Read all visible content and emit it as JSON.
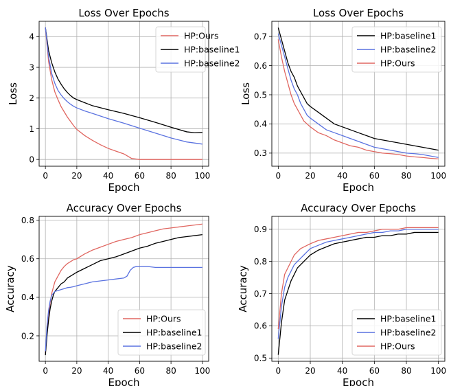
{
  "colors": {
    "ours": "#e06660",
    "baseline1": "#000000",
    "baseline2": "#5a72e0"
  },
  "chart_data": [
    {
      "type": "line",
      "title": "Loss Over Epochs",
      "xlabel": "Epoch",
      "ylabel": "Loss",
      "xlim": [
        -4,
        104
      ],
      "ylim": [
        -0.22,
        4.5
      ],
      "xticks": [
        "0",
        "20",
        "40",
        "60",
        "80",
        "100"
      ],
      "yticks": [
        "0",
        "1",
        "2",
        "3",
        "4"
      ],
      "grid": true,
      "legend": "upper-right",
      "series": [
        {
          "name": "HP:Ours",
          "color": "#e06660",
          "x": [
            0,
            2,
            4,
            6,
            8,
            10,
            12,
            14,
            16,
            18,
            20,
            25,
            30,
            35,
            40,
            45,
            50,
            55,
            60,
            70,
            80,
            90,
            100
          ],
          "y": [
            4.3,
            3.2,
            2.6,
            2.2,
            1.95,
            1.72,
            1.55,
            1.38,
            1.24,
            1.1,
            0.98,
            0.78,
            0.62,
            0.48,
            0.36,
            0.27,
            0.18,
            0.03,
            0.0,
            0.0,
            0.0,
            0.0,
            0.0
          ]
        },
        {
          "name": "HP:baseline1",
          "color": "#000000",
          "x": [
            0,
            2,
            4,
            6,
            8,
            10,
            12,
            14,
            16,
            18,
            20,
            25,
            30,
            40,
            50,
            60,
            70,
            80,
            90,
            95,
            100
          ],
          "y": [
            4.3,
            3.55,
            3.15,
            2.85,
            2.62,
            2.45,
            2.3,
            2.18,
            2.08,
            2.0,
            1.95,
            1.85,
            1.75,
            1.62,
            1.5,
            1.36,
            1.21,
            1.05,
            0.9,
            0.87,
            0.88
          ]
        },
        {
          "name": "HP:baseline2",
          "color": "#5a72e0",
          "x": [
            0,
            2,
            4,
            6,
            8,
            10,
            12,
            14,
            16,
            18,
            20,
            25,
            30,
            40,
            50,
            60,
            70,
            80,
            90,
            100
          ],
          "y": [
            4.3,
            3.35,
            2.8,
            2.48,
            2.25,
            2.1,
            1.98,
            1.88,
            1.8,
            1.73,
            1.68,
            1.58,
            1.5,
            1.33,
            1.18,
            1.02,
            0.86,
            0.7,
            0.57,
            0.5
          ]
        }
      ]
    },
    {
      "type": "line",
      "title": "Loss Over Epochs",
      "xlabel": "Epoch",
      "ylabel": "Loss",
      "xlim": [
        -4,
        104
      ],
      "ylim": [
        0.255,
        0.752
      ],
      "xticks": [
        "0",
        "20",
        "40",
        "60",
        "80",
        "100"
      ],
      "yticks": [
        "0.3",
        "0.4",
        "0.5",
        "0.6",
        "0.7"
      ],
      "grid": true,
      "legend": "upper-right",
      "series": [
        {
          "name": "HP:baseline1",
          "color": "#000000",
          "x": [
            0,
            2,
            4,
            6,
            8,
            10,
            12,
            14,
            16,
            18,
            20,
            25,
            30,
            35,
            40,
            45,
            50,
            55,
            60,
            65,
            70,
            75,
            80,
            85,
            90,
            95,
            100
          ],
          "y": [
            0.73,
            0.69,
            0.65,
            0.61,
            0.58,
            0.56,
            0.53,
            0.51,
            0.49,
            0.47,
            0.46,
            0.44,
            0.42,
            0.4,
            0.39,
            0.38,
            0.37,
            0.36,
            0.35,
            0.345,
            0.34,
            0.335,
            0.33,
            0.325,
            0.32,
            0.315,
            0.31
          ]
        },
        {
          "name": "HP:baseline2",
          "color": "#5a72e0",
          "x": [
            0,
            2,
            4,
            6,
            8,
            10,
            12,
            14,
            16,
            18,
            20,
            25,
            30,
            35,
            40,
            45,
            50,
            55,
            60,
            65,
            70,
            75,
            80,
            85,
            90,
            95,
            100
          ],
          "y": [
            0.71,
            0.67,
            0.63,
            0.59,
            0.55,
            0.52,
            0.5,
            0.47,
            0.45,
            0.43,
            0.42,
            0.4,
            0.38,
            0.37,
            0.36,
            0.35,
            0.34,
            0.33,
            0.32,
            0.315,
            0.31,
            0.305,
            0.3,
            0.298,
            0.295,
            0.29,
            0.285
          ]
        },
        {
          "name": "HP:Ours",
          "color": "#e06660",
          "x": [
            0,
            2,
            4,
            6,
            8,
            10,
            12,
            14,
            16,
            18,
            20,
            25,
            30,
            35,
            40,
            45,
            50,
            55,
            60,
            65,
            70,
            75,
            80,
            85,
            90,
            95,
            100
          ],
          "y": [
            0.69,
            0.63,
            0.58,
            0.54,
            0.5,
            0.47,
            0.45,
            0.43,
            0.41,
            0.4,
            0.39,
            0.37,
            0.36,
            0.345,
            0.335,
            0.325,
            0.32,
            0.31,
            0.305,
            0.3,
            0.298,
            0.295,
            0.29,
            0.287,
            0.285,
            0.282,
            0.28
          ]
        }
      ]
    },
    {
      "type": "line",
      "title": "Accuracy Over Epochs",
      "xlabel": "Epoch",
      "ylabel": "Accuracy",
      "xlim": [
        -4,
        104
      ],
      "ylim": [
        0.068,
        0.82
      ],
      "xticks": [
        "0",
        "20",
        "40",
        "60",
        "80",
        "100"
      ],
      "yticks": [
        "0.2",
        "0.4",
        "0.6",
        "0.8"
      ],
      "grid": true,
      "legend": "lower-right",
      "series": [
        {
          "name": "HP:Ours",
          "color": "#e06660",
          "x": [
            0,
            1,
            2,
            3,
            4,
            5,
            6,
            8,
            10,
            12,
            14,
            16,
            18,
            20,
            25,
            30,
            35,
            40,
            45,
            50,
            55,
            60,
            65,
            70,
            75,
            80,
            85,
            90,
            95,
            100
          ],
          "y": [
            0.11,
            0.22,
            0.3,
            0.37,
            0.42,
            0.45,
            0.48,
            0.51,
            0.54,
            0.56,
            0.575,
            0.585,
            0.595,
            0.6,
            0.625,
            0.645,
            0.66,
            0.675,
            0.69,
            0.7,
            0.71,
            0.725,
            0.735,
            0.745,
            0.755,
            0.76,
            0.765,
            0.77,
            0.775,
            0.78
          ]
        },
        {
          "name": "HP:baseline1",
          "color": "#000000",
          "x": [
            0,
            1,
            2,
            3,
            4,
            5,
            6,
            8,
            10,
            12,
            14,
            16,
            18,
            20,
            25,
            30,
            35,
            40,
            45,
            50,
            55,
            60,
            65,
            70,
            75,
            80,
            85,
            90,
            95,
            100
          ],
          "y": [
            0.1,
            0.2,
            0.28,
            0.34,
            0.38,
            0.41,
            0.43,
            0.45,
            0.47,
            0.48,
            0.5,
            0.51,
            0.52,
            0.53,
            0.55,
            0.57,
            0.59,
            0.6,
            0.61,
            0.625,
            0.64,
            0.655,
            0.665,
            0.68,
            0.69,
            0.7,
            0.71,
            0.715,
            0.72,
            0.725
          ]
        },
        {
          "name": "HP:baseline2",
          "color": "#5a72e0",
          "x": [
            0,
            1,
            2,
            3,
            4,
            5,
            6,
            8,
            10,
            12,
            14,
            16,
            18,
            20,
            25,
            30,
            35,
            40,
            45,
            50,
            52,
            54,
            56,
            58,
            60,
            65,
            70,
            75,
            80,
            85,
            90,
            95,
            100
          ],
          "y": [
            0.12,
            0.25,
            0.33,
            0.38,
            0.41,
            0.42,
            0.43,
            0.435,
            0.44,
            0.445,
            0.45,
            0.452,
            0.455,
            0.46,
            0.47,
            0.48,
            0.485,
            0.49,
            0.495,
            0.5,
            0.51,
            0.54,
            0.555,
            0.56,
            0.56,
            0.56,
            0.555,
            0.555,
            0.555,
            0.555,
            0.555,
            0.555,
            0.555
          ]
        }
      ]
    },
    {
      "type": "line",
      "title": "Accuracy Over Epochs",
      "xlabel": "Epoch",
      "ylabel": "Accuracy",
      "xlim": [
        -4,
        104
      ],
      "ylim": [
        0.49,
        0.94
      ],
      "xticks": [
        "0",
        "20",
        "40",
        "60",
        "80",
        "100"
      ],
      "yticks": [
        "0.5",
        "0.6",
        "0.7",
        "0.8",
        "0.9"
      ],
      "grid": true,
      "legend": "lower-right",
      "series": [
        {
          "name": "HP:baseline1",
          "color": "#000000",
          "x": [
            0,
            2,
            4,
            6,
            8,
            10,
            12,
            14,
            16,
            18,
            20,
            25,
            30,
            35,
            40,
            45,
            50,
            55,
            60,
            65,
            70,
            75,
            80,
            85,
            90,
            95,
            100
          ],
          "y": [
            0.51,
            0.61,
            0.68,
            0.71,
            0.74,
            0.76,
            0.78,
            0.79,
            0.8,
            0.81,
            0.82,
            0.835,
            0.845,
            0.855,
            0.86,
            0.865,
            0.87,
            0.875,
            0.875,
            0.88,
            0.88,
            0.885,
            0.885,
            0.89,
            0.89,
            0.89,
            0.89
          ]
        },
        {
          "name": "HP:baseline2",
          "color": "#5a72e0",
          "x": [
            0,
            2,
            4,
            6,
            8,
            10,
            12,
            14,
            16,
            18,
            20,
            25,
            30,
            35,
            40,
            45,
            50,
            55,
            60,
            65,
            70,
            75,
            80,
            85,
            90,
            95,
            100
          ],
          "y": [
            0.56,
            0.66,
            0.72,
            0.75,
            0.77,
            0.79,
            0.8,
            0.81,
            0.82,
            0.83,
            0.84,
            0.85,
            0.86,
            0.865,
            0.87,
            0.875,
            0.88,
            0.885,
            0.89,
            0.89,
            0.895,
            0.895,
            0.9,
            0.9,
            0.9,
            0.9,
            0.9
          ]
        },
        {
          "name": "HP:Ours",
          "color": "#e06660",
          "x": [
            0,
            2,
            4,
            6,
            8,
            10,
            12,
            14,
            16,
            18,
            20,
            25,
            30,
            35,
            40,
            45,
            50,
            55,
            60,
            65,
            70,
            75,
            80,
            85,
            90,
            95,
            100
          ],
          "y": [
            0.59,
            0.7,
            0.76,
            0.78,
            0.8,
            0.82,
            0.83,
            0.84,
            0.845,
            0.85,
            0.855,
            0.865,
            0.87,
            0.875,
            0.88,
            0.885,
            0.89,
            0.89,
            0.895,
            0.9,
            0.9,
            0.9,
            0.905,
            0.905,
            0.905,
            0.905,
            0.905
          ]
        }
      ]
    }
  ]
}
